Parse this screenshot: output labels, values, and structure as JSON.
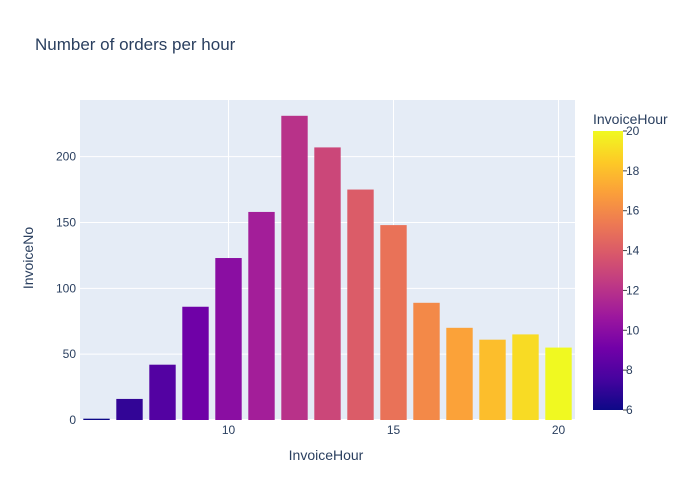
{
  "chart_data": {
    "type": "bar",
    "title": "Number of orders per hour",
    "xlabel": "InvoiceHour",
    "ylabel": "InvoiceNo",
    "x": [
      6,
      7,
      8,
      9,
      10,
      11,
      12,
      13,
      14,
      15,
      16,
      17,
      18,
      19,
      20
    ],
    "values": [
      1,
      16,
      42,
      86,
      123,
      158,
      231,
      207,
      175,
      148,
      89,
      70,
      61,
      65,
      55
    ],
    "xlim": [
      5.5,
      20.5
    ],
    "ylim": [
      0,
      243
    ],
    "xticks": [
      10,
      15,
      20
    ],
    "yticks": [
      0,
      50,
      100,
      150,
      200
    ],
    "grid": true,
    "colorbar": {
      "title": "InvoiceHour",
      "range": [
        6,
        20
      ],
      "ticks": [
        6,
        8,
        10,
        12,
        14,
        16,
        18,
        20
      ],
      "colors": [
        "#0d0887",
        "#46039f",
        "#7201a8",
        "#9c179e",
        "#bd3786",
        "#d8576b",
        "#ed7953",
        "#fb9f3a",
        "#fdca26",
        "#f0f921"
      ]
    },
    "background_color": "#e5ecf6"
  }
}
